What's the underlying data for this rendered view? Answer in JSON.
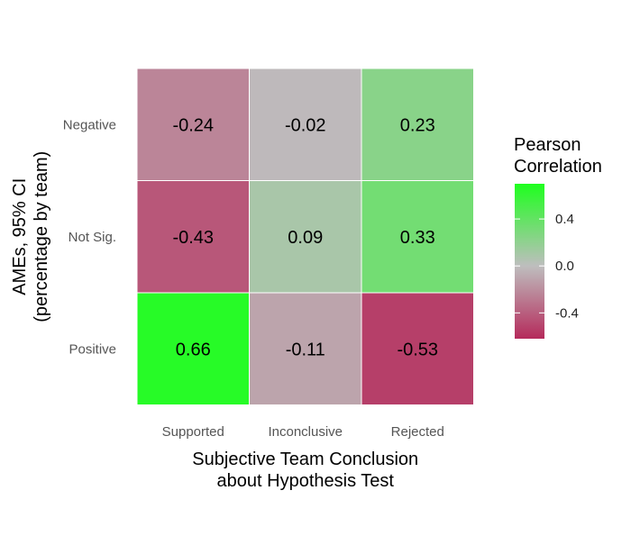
{
  "chart_data": {
    "type": "heatmap",
    "title": "",
    "xlabel_lines": [
      "Subjective Team Conclusion",
      "about Hypothesis Test"
    ],
    "ylabel_lines": [
      "AMEs, 95% CI",
      "(percentage by team)"
    ],
    "x_categories": [
      "Supported",
      "Inconclusive",
      "Rejected"
    ],
    "y_categories": [
      "Negative",
      "Not Sig.",
      "Positive"
    ],
    "values": [
      [
        -0.24,
        -0.02,
        0.23
      ],
      [
        -0.43,
        0.09,
        0.33
      ],
      [
        0.66,
        -0.11,
        -0.53
      ]
    ],
    "color_scale": {
      "low": "#b52a5b",
      "mid": "#bebebe",
      "high": "#1eff1e",
      "midpoint": 0,
      "range": [
        -0.62,
        0.7
      ]
    },
    "legend": {
      "title_lines": [
        "Pearson",
        "Correlation"
      ],
      "ticks": [
        0.4,
        0.0,
        -0.4
      ],
      "tick_labels": [
        "0.4",
        "0.0",
        "-0.4"
      ],
      "placement": "right"
    },
    "grid": false
  }
}
